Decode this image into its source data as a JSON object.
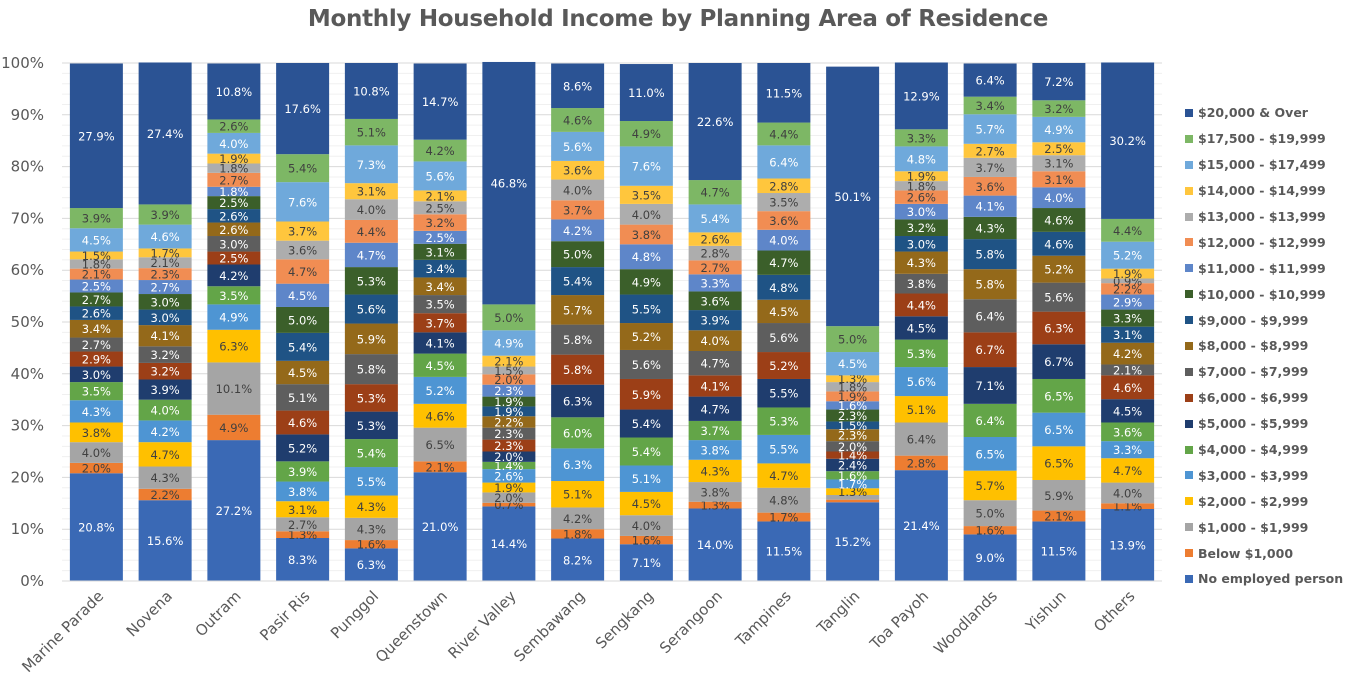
{
  "chart_data": {
    "type": "bar",
    "stacked": "percent",
    "title": "Monthly Household Income by Planning Area of Residence",
    "xlabel": "",
    "ylabel": "",
    "ylim": [
      0,
      100
    ],
    "y_ticks": [
      "0%",
      "10%",
      "20%",
      "30%",
      "40%",
      "50%",
      "60%",
      "70%",
      "80%",
      "90%",
      "100%"
    ],
    "grid": "major every 10%, minor every 2%",
    "legend_position": "right",
    "categories": [
      "Marine Parade",
      "Novena",
      "Outram",
      "Pasir Ris",
      "Punggol",
      "Queenstown",
      "River Valley",
      "Sembawang",
      "Sengkang",
      "Serangoon",
      "Tampines",
      "Tanglin",
      "Toa Payoh",
      "Woodlands",
      "Yishun",
      "Others"
    ],
    "series": [
      {
        "name": "No employed person",
        "color": "#3A69B5",
        "label_color": "#ffffff",
        "values": [
          20.8,
          15.6,
          27.2,
          8.3,
          6.3,
          21.0,
          14.4,
          8.2,
          7.1,
          14.0,
          11.5,
          15.2,
          21.4,
          9.0,
          11.5,
          13.9
        ]
      },
      {
        "name": "Below $1,000",
        "color": "#ED7D31",
        "label_color": "#404040",
        "values": [
          2.0,
          2.2,
          4.9,
          1.3,
          1.6,
          2.1,
          0.7,
          1.8,
          1.6,
          1.3,
          1.7,
          0.5,
          2.8,
          1.6,
          2.1,
          1.1
        ],
        "hidden_labels": [
          11
        ]
      },
      {
        "name": "$1,000 - $1,999",
        "color": "#A5A5A5",
        "label_color": "#404040",
        "values": [
          4.0,
          4.3,
          10.1,
          2.7,
          4.3,
          6.5,
          2.0,
          4.2,
          4.0,
          3.8,
          4.8,
          0.9,
          6.4,
          5.0,
          5.9,
          4.0
        ],
        "hidden_labels": [
          11
        ]
      },
      {
        "name": "$2,000 - $2,999",
        "color": "#FFC000",
        "label_color": "#404040",
        "values": [
          3.8,
          4.7,
          6.3,
          3.1,
          4.3,
          4.6,
          1.9,
          5.1,
          4.5,
          4.3,
          4.7,
          1.3,
          5.1,
          5.7,
          6.5,
          4.7
        ]
      },
      {
        "name": "$3,000 - $3,999",
        "color": "#4E95D3",
        "label_color": "#ffffff",
        "values": [
          4.3,
          4.2,
          4.9,
          3.8,
          5.5,
          5.2,
          2.6,
          6.3,
          5.1,
          3.8,
          5.5,
          1.7,
          5.6,
          6.5,
          6.5,
          3.3
        ]
      },
      {
        "name": "$4,000 - $4,999",
        "color": "#63A548",
        "label_color": "#ffffff",
        "values": [
          3.5,
          4.0,
          3.5,
          3.9,
          5.4,
          4.5,
          1.4,
          6.0,
          5.4,
          3.7,
          5.3,
          1.6,
          5.3,
          6.4,
          6.5,
          3.6
        ]
      },
      {
        "name": "$5,000 - $5,999",
        "color": "#1F3D6E",
        "label_color": "#ffffff",
        "values": [
          3.0,
          3.9,
          4.2,
          5.2,
          5.3,
          4.1,
          2.0,
          6.3,
          5.4,
          4.7,
          5.5,
          2.4,
          4.5,
          7.1,
          6.7,
          4.5
        ]
      },
      {
        "name": "$6,000 - $6,999",
        "color": "#9C3F17",
        "label_color": "#ffffff",
        "values": [
          2.9,
          3.2,
          2.5,
          4.6,
          5.3,
          3.7,
          2.3,
          5.8,
          5.9,
          4.1,
          5.2,
          1.4,
          4.4,
          6.7,
          6.3,
          4.6
        ]
      },
      {
        "name": "$7,000 - $7,999",
        "color": "#5E5E5E",
        "label_color": "#ffffff",
        "values": [
          2.7,
          3.2,
          3.0,
          5.1,
          5.8,
          3.5,
          2.3,
          5.8,
          5.6,
          4.7,
          5.6,
          2.0,
          3.8,
          6.4,
          5.6,
          2.1
        ]
      },
      {
        "name": "$8,000 - $8,999",
        "color": "#94691A",
        "label_color": "#ffffff",
        "values": [
          3.4,
          4.1,
          2.6,
          4.5,
          5.9,
          3.4,
          2.2,
          5.7,
          5.2,
          4.0,
          4.5,
          2.3,
          4.3,
          5.8,
          5.2,
          4.2
        ]
      },
      {
        "name": "$9,000 - $9,999",
        "color": "#1F5385",
        "label_color": "#ffffff",
        "values": [
          2.6,
          3.0,
          2.6,
          5.4,
          5.6,
          3.4,
          1.9,
          5.4,
          5.5,
          3.9,
          4.8,
          1.5,
          3.0,
          5.8,
          4.6,
          3.1
        ]
      },
      {
        "name": "$10,000 - $10,999",
        "color": "#3B5F2A",
        "label_color": "#ffffff",
        "values": [
          2.7,
          3.0,
          2.5,
          5.0,
          5.3,
          3.1,
          1.9,
          5.0,
          4.9,
          3.6,
          4.7,
          2.3,
          3.2,
          4.3,
          4.6,
          3.3
        ]
      },
      {
        "name": "$11,000 - $11,999",
        "color": "#5E86C9",
        "label_color": "#ffffff",
        "values": [
          2.5,
          2.7,
          1.8,
          4.5,
          4.7,
          2.5,
          2.3,
          4.2,
          4.8,
          3.3,
          4.0,
          1.6,
          3.0,
          4.1,
          4.0,
          2.9
        ]
      },
      {
        "name": "$12,000 - $12,999",
        "color": "#F18D53",
        "label_color": "#404040",
        "values": [
          2.1,
          2.3,
          2.7,
          4.7,
          4.4,
          3.2,
          2.0,
          3.7,
          3.8,
          2.7,
          3.6,
          1.9,
          2.6,
          3.6,
          3.1,
          2.2
        ]
      },
      {
        "name": "$13,000 - $13,999",
        "color": "#ADADAD",
        "label_color": "#404040",
        "values": [
          1.8,
          2.1,
          1.8,
          3.6,
          4.0,
          2.5,
          1.5,
          4.0,
          4.0,
          2.8,
          3.5,
          1.8,
          1.8,
          3.7,
          3.1,
          0.9
        ]
      },
      {
        "name": "$14,000 - $14,999",
        "color": "#FFC63D",
        "label_color": "#404040",
        "values": [
          1.5,
          1.7,
          1.9,
          3.7,
          3.1,
          2.1,
          2.1,
          3.6,
          3.5,
          2.6,
          2.8,
          1.3,
          1.9,
          2.7,
          2.5,
          1.9
        ]
      },
      {
        "name": "$15,000 - $17,499",
        "color": "#6FA9DB",
        "label_color": "#ffffff",
        "values": [
          4.5,
          4.6,
          4.0,
          7.6,
          7.3,
          5.6,
          4.9,
          5.6,
          7.6,
          5.4,
          6.4,
          4.5,
          4.8,
          5.7,
          4.9,
          5.2
        ]
      },
      {
        "name": "$17,500 - $19,999",
        "color": "#7DB765",
        "label_color": "#404040",
        "values": [
          3.9,
          3.9,
          2.6,
          5.4,
          5.1,
          4.2,
          5.0,
          4.6,
          4.9,
          4.7,
          4.4,
          5.0,
          3.3,
          3.4,
          3.2,
          4.4
        ]
      },
      {
        "name": "$20,000 & Over",
        "color": "#2B5394",
        "label_color": "#ffffff",
        "values": [
          27.9,
          27.4,
          10.8,
          17.6,
          10.8,
          14.7,
          46.8,
          8.6,
          11.0,
          22.6,
          11.5,
          50.1,
          12.9,
          6.4,
          7.2,
          30.2
        ]
      }
    ]
  }
}
